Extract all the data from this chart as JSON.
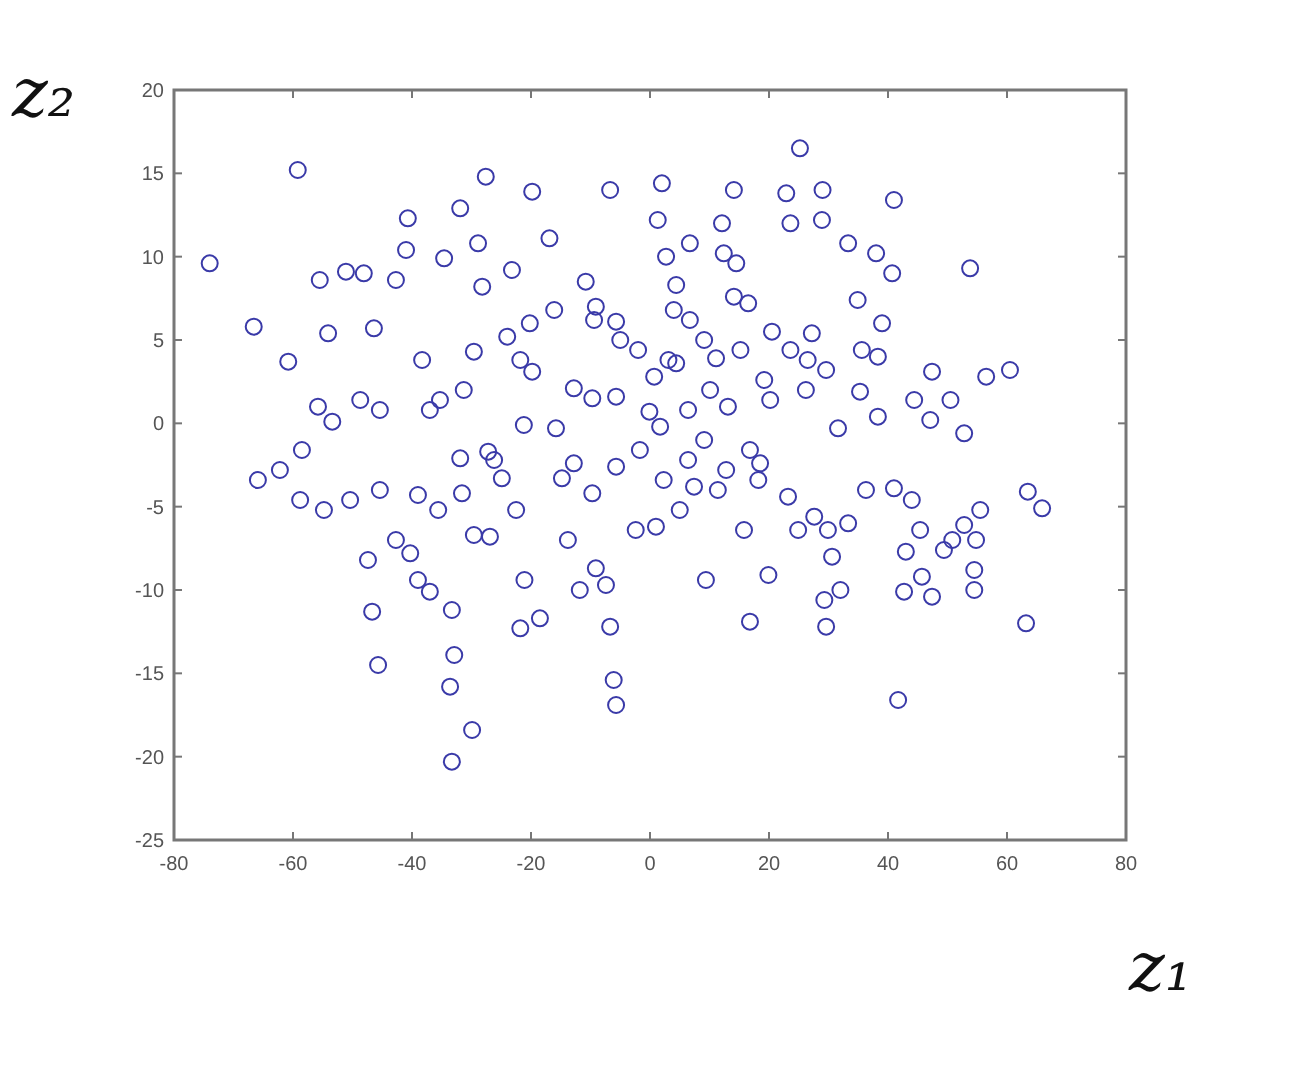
{
  "chart_data": {
    "type": "scatter",
    "xlabel": "z₁",
    "ylabel": "z₂",
    "xlim": [
      -80,
      80
    ],
    "ylim": [
      -25,
      20
    ],
    "xticks": [
      -80,
      -60,
      -40,
      -20,
      0,
      20,
      40,
      60,
      80
    ],
    "yticks": [
      -25,
      -20,
      -15,
      -10,
      -5,
      0,
      5,
      10,
      15,
      20
    ],
    "grid": false,
    "marker": "circle",
    "x": [
      -59.2,
      25.2,
      -27.6,
      -31.9,
      -19.8,
      -6.7,
      2.0,
      14.1,
      22.9,
      29,
      41,
      -74,
      -40.7,
      -51.1,
      -48.1,
      -55.5,
      -46.4,
      -54.1,
      -66.6,
      -60.8,
      -55.8,
      -42.7,
      -41,
      -28.9,
      -34.6,
      -28.2,
      -20.2,
      -16.1,
      -9.1,
      -9.4,
      -5,
      -24,
      -21.8,
      -38.3,
      -29.6,
      -23.2,
      -16.9,
      -10.8,
      -5.7,
      4.4,
      1.3,
      2.7,
      6.7,
      12.1,
      14.5,
      12.4,
      23.6,
      28.9,
      33.3,
      38,
      40.7,
      53.8,
      4,
      6.7,
      4.4,
      9.1,
      14.1,
      16.5,
      20.5,
      27.2,
      34.9,
      39,
      47.4,
      60.5,
      56.5,
      38.3,
      26.5,
      29.6,
      19.2,
      10.1,
      0.7,
      -2,
      -9.7,
      -12.8,
      -19.8,
      -31.3,
      -37,
      -45.4,
      -48.7,
      -53.4,
      -58.5,
      -62.2,
      -65.9,
      -54.8,
      -50.4,
      -45.4,
      -39,
      -35.6,
      -42.7,
      -40.3,
      -47.4,
      -46.7,
      -45.7,
      -39,
      -37,
      -33.3,
      -32.9,
      -33.6,
      -29.9,
      -33.3,
      -21.8,
      -18.5,
      -21.1,
      -29.6,
      -26.9,
      -31.6,
      -31.9,
      -26.2,
      -24.9,
      -22.5,
      -14.8,
      -12.8,
      -9.7,
      -5.7,
      -13.8,
      -11.8,
      -9.1,
      -7.4,
      -6.7,
      -6.1,
      -5.7,
      -2.4,
      1,
      5,
      2.3,
      -1.7,
      1.7,
      -0.1,
      6.4,
      9.1,
      11.4,
      12.8,
      16.8,
      18.2,
      18.5,
      15.8,
      19.9,
      16.8,
      23.2,
      27.6,
      24.9,
      29.9,
      33.3,
      30.6,
      32,
      29.3,
      29.6,
      36.3,
      41,
      44,
      45.4,
      43,
      45.7,
      49.4,
      50.8,
      52.8,
      55.5,
      54.8,
      54.5,
      54.5,
      42.7,
      47.4,
      63.5,
      65.9,
      63.2,
      41.7,
      52.8,
      50.5,
      47.1,
      38.3,
      35.3,
      31.6,
      44.4,
      26.2,
      13.1,
      6.4,
      -5.7,
      -15.8,
      -21.2,
      -27.2,
      -35.3,
      -58.8,
      9.4,
      7.4,
      20.2,
      23.6,
      15.2,
      35.6,
      11.1,
      3.1
    ],
    "series": [
      {
        "color": "#3a3aa8",
        "values": [
          15.2,
          16.5,
          14.8,
          12.9,
          13.9,
          14.0,
          14.4,
          14.0,
          13.8,
          14,
          13.4,
          9.6,
          12.3,
          9.1,
          9.0,
          8.6,
          5.7,
          5.4,
          5.8,
          3.7,
          1.0,
          8.6,
          10.4,
          10.8,
          9.9,
          8.2,
          6.0,
          6.8,
          7.0,
          6.2,
          5.0,
          5.2,
          3.8,
          3.8,
          4.3,
          9.2,
          11.1,
          8.5,
          6.1,
          8.3,
          12.2,
          10.0,
          10.8,
          12.0,
          9.6,
          10.2,
          12.0,
          12.2,
          10.8,
          10.2,
          9.0,
          9.3,
          6.8,
          6.2,
          3.6,
          5.0,
          7.6,
          7.2,
          5.5,
          5.4,
          7.4,
          6.0,
          3.1,
          3.2,
          2.8,
          4.0,
          3.8,
          3.2,
          2.6,
          2.0,
          2.8,
          4.4,
          1.5,
          2.1,
          3.1,
          2.0,
          0.8,
          0.8,
          1.4,
          0.1,
          -1.6,
          -2.8,
          -3.4,
          -5.2,
          -4.6,
          -4.0,
          -4.3,
          -5.2,
          -7.0,
          -7.8,
          -8.2,
          -11.3,
          -14.5,
          -9.4,
          -10.1,
          -11.2,
          -13.9,
          -15.8,
          -18.4,
          -20.3,
          -12.3,
          -11.7,
          -9.4,
          -6.7,
          -6.8,
          -4.2,
          -2.1,
          -2.2,
          -3.3,
          -5.2,
          -3.3,
          -2.4,
          -4.2,
          -2.6,
          -7.0,
          -10.0,
          -8.7,
          -9.7,
          -12.2,
          -15.4,
          -16.9,
          -6.4,
          -6.2,
          -5.2,
          -3.4,
          -1.6,
          -0.2,
          0.7,
          -2.2,
          -1.0,
          -4.0,
          -2.8,
          -1.6,
          -3.4,
          -2.4,
          -6.4,
          -9.1,
          -11.9,
          -4.4,
          -5.6,
          -6.4,
          -6.4,
          -6.0,
          -8.0,
          -10.0,
          -10.6,
          -12.2,
          -4.0,
          -3.9,
          -4.6,
          -6.4,
          -7.7,
          -9.2,
          -7.6,
          -7.0,
          -6.1,
          -5.2,
          -7.0,
          -8.8,
          -10.0,
          -10.1,
          -10.4,
          -4.1,
          -5.1,
          -12.0,
          -16.6,
          -0.6,
          1.4,
          0.2,
          0.4,
          1.9,
          -0.3,
          1.4,
          2.0,
          1.0,
          0.8,
          1.6,
          -0.3,
          -0.1,
          -1.7,
          1.4,
          -4.6,
          -9.4,
          -3.8,
          1.4,
          4.4,
          4.4,
          4.4,
          3.9,
          3.8
        ]
      }
    ]
  }
}
